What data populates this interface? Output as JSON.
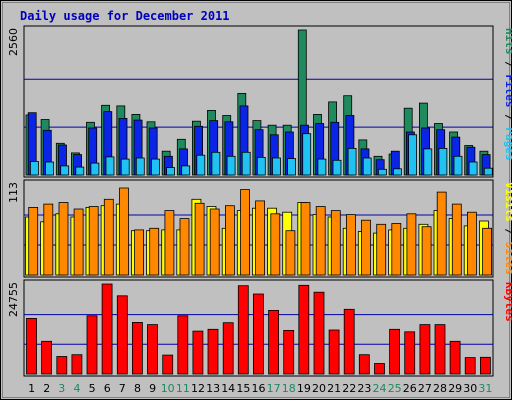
{
  "chart_data": {
    "type": "bar",
    "title": "Daily usage for December 2011",
    "categories": [
      "1",
      "2",
      "3",
      "4",
      "5",
      "6",
      "7",
      "8",
      "9",
      "10",
      "11",
      "12",
      "13",
      "14",
      "15",
      "16",
      "17",
      "18",
      "19",
      "20",
      "21",
      "22",
      "23",
      "24",
      "25",
      "26",
      "27",
      "28",
      "29",
      "30",
      "31"
    ],
    "weekend_days": [
      "3",
      "4",
      "10",
      "11",
      "17",
      "18",
      "24",
      "25",
      "31"
    ],
    "colors": {
      "hits": "#1e8a5e",
      "files": "#0b25e6",
      "pages": "#1fc2f0",
      "visits": "#ffff00",
      "sites": "#ff8800",
      "kbytes": "#ff0000",
      "title": "#0000c0",
      "weekday_label": "#000000",
      "weekend_label": "#1e8a5e",
      "plot_bg": "#c0c0c0"
    },
    "panels": [
      {
        "ytick": "2560",
        "ymax": 2560,
        "legend": [
          {
            "text": "Pages",
            "color_key": "pages"
          },
          {
            "text": " / ",
            "color_key": "weekday_label"
          },
          {
            "text": "Files",
            "color_key": "files"
          },
          {
            "text": " / ",
            "color_key": "weekday_label"
          },
          {
            "text": "Hits",
            "color_key": "hits"
          }
        ],
        "series": [
          {
            "name": "Hits",
            "color_key": "hits",
            "values": [
              1060,
              980,
              560,
              390,
              930,
              1230,
              1220,
              1070,
              940,
              420,
              630,
              950,
              1140,
              1050,
              1440,
              960,
              880,
              880,
              2560,
              1070,
              1290,
              1400,
              620,
              330,
              370,
              1180,
              1270,
              910,
              760,
              520,
              420
            ]
          },
          {
            "name": "Files",
            "color_key": "files",
            "values": [
              1100,
              790,
              530,
              360,
              830,
              1120,
              1000,
              970,
              830,
              330,
              460,
              860,
              960,
              940,
              1220,
              800,
              710,
              760,
              880,
              910,
              930,
              1050,
              460,
              270,
              420,
              760,
              830,
              800,
              670,
              490,
              360
            ]
          },
          {
            "name": "Pages",
            "color_key": "pages",
            "values": [
              240,
              230,
              160,
              140,
              210,
              320,
              280,
              300,
              280,
              130,
              160,
              350,
              400,
              330,
              400,
              310,
              300,
              290,
              730,
              280,
              260,
              470,
              300,
              100,
              110,
              710,
              460,
              470,
              330,
              230,
              120
            ]
          }
        ]
      },
      {
        "ytick": "113",
        "ymax": 113,
        "legend": [
          {
            "text": "Sites",
            "color_key": "sites"
          },
          {
            "text": " / ",
            "color_key": "weekday_label"
          },
          {
            "text": "Visits",
            "color_key": "visits"
          }
        ],
        "series": [
          {
            "name": "Visits",
            "color_key": "visits",
            "values": [
              72,
              66,
              76,
              72,
              84,
              86,
              88,
              55,
              55,
              56,
              56,
              94,
              85,
              58,
              80,
              83,
              83,
              78,
              90,
              75,
              72,
              58,
              54,
              52,
              56,
              58,
              63,
              80,
              70,
              61,
              67
            ]
          },
          {
            "name": "Sites",
            "color_key": "sites",
            "values": [
              84,
              88,
              90,
              82,
              85,
              94,
              108,
              56,
              58,
              80,
              70,
              89,
              82,
              86,
              106,
              92,
              76,
              55,
              90,
              85,
              80,
              75,
              68,
              63,
              64,
              76,
              60,
              103,
              88,
              78,
              58
            ]
          }
        ]
      },
      {
        "ytick": "24755",
        "ymax": 24755,
        "legend": [
          {
            "text": "KBytes",
            "color_key": "kbytes"
          }
        ],
        "series": [
          {
            "name": "KBytes",
            "color_key": "kbytes",
            "values": [
              15300,
              9000,
              4800,
              5300,
              16000,
              24755,
              21500,
              14200,
              13600,
              5200,
              16000,
              11800,
              12300,
              14100,
              24300,
              22000,
              17500,
              12000,
              24400,
              22500,
              12100,
              17800,
              5300,
              2900,
              12300,
              11600,
              13600,
              13600,
              9000,
              4500,
              4600
            ]
          }
        ]
      }
    ]
  }
}
